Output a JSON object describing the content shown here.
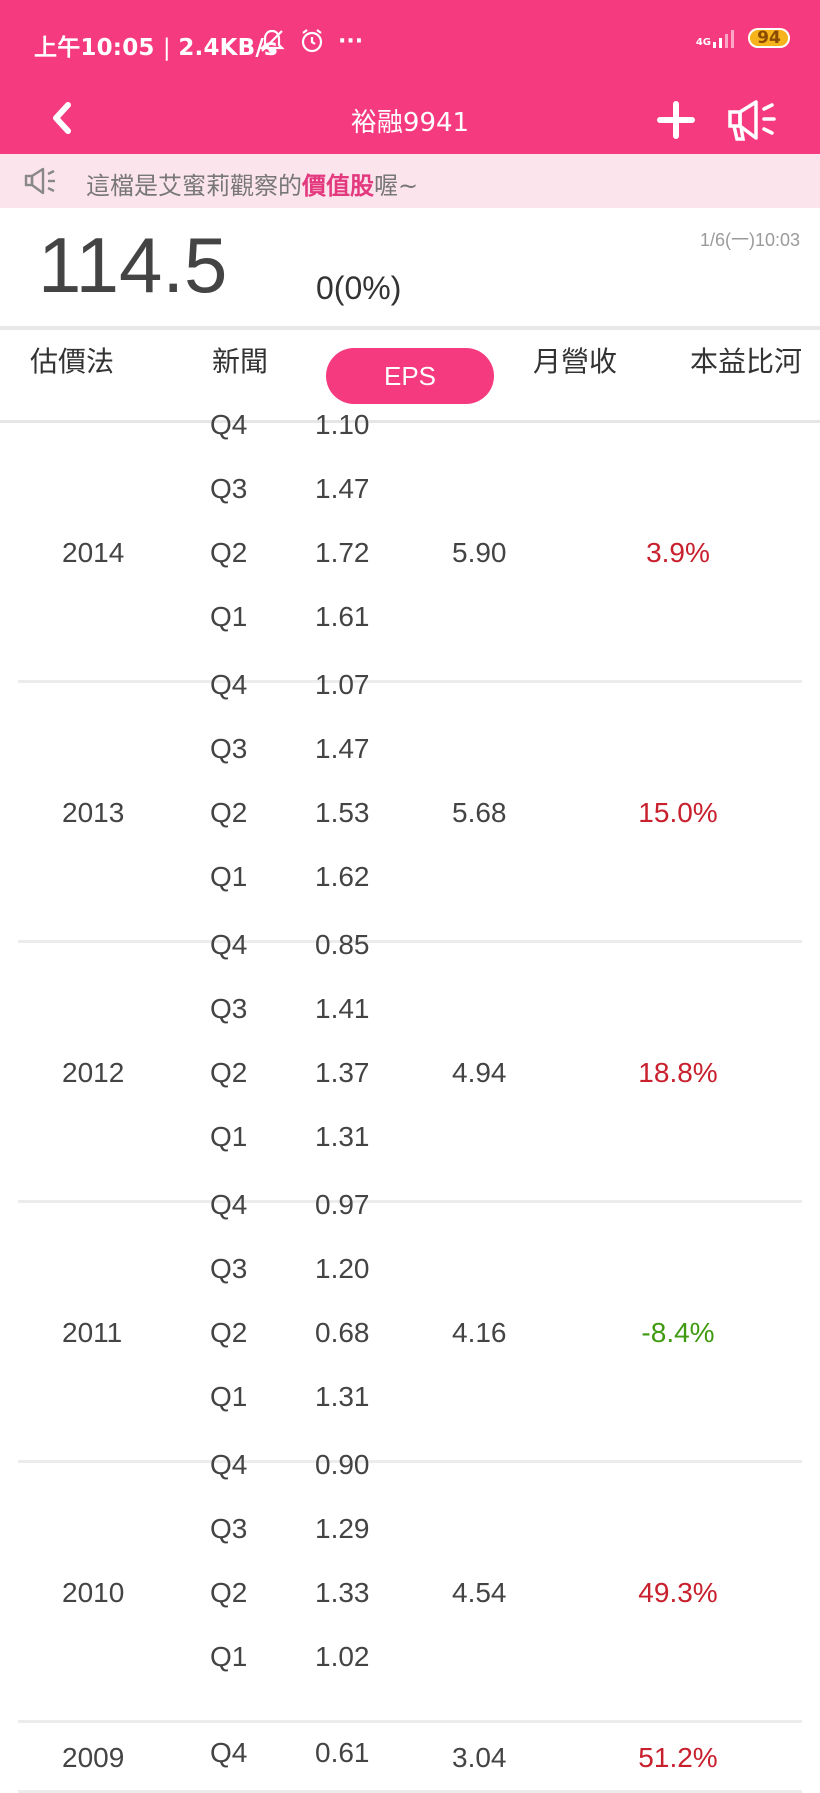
{
  "status_bar": {
    "time": "上午10:05",
    "network_speed": "2.4KB/s",
    "more": "···",
    "signal_label": "4G",
    "battery": "94"
  },
  "header": {
    "title": "裕融9941"
  },
  "notice": {
    "prefix": "這檔是艾蜜莉觀察的",
    "highlight": "價值股",
    "suffix": "喔~"
  },
  "quote": {
    "price": "114.5",
    "change": "0(0%)",
    "timestamp": "1/6(一)10:03"
  },
  "tabs": [
    {
      "label": "估價法",
      "active": false
    },
    {
      "label": "新聞",
      "active": false
    },
    {
      "label": "EPS",
      "active": true
    },
    {
      "label": "月營收",
      "active": false
    },
    {
      "label": "本益比河",
      "active": false
    }
  ],
  "eps_table": [
    {
      "year": "2014",
      "total": "5.90",
      "growth": "3.9%",
      "growth_direction": "up",
      "quarters": [
        {
          "q": "Q4",
          "eps": "1.10"
        },
        {
          "q": "Q3",
          "eps": "1.47"
        },
        {
          "q": "Q2",
          "eps": "1.72"
        },
        {
          "q": "Q1",
          "eps": "1.61"
        }
      ]
    },
    {
      "year": "2013",
      "total": "5.68",
      "growth": "15.0%",
      "growth_direction": "up",
      "quarters": [
        {
          "q": "Q4",
          "eps": "1.07"
        },
        {
          "q": "Q3",
          "eps": "1.47"
        },
        {
          "q": "Q2",
          "eps": "1.53"
        },
        {
          "q": "Q1",
          "eps": "1.62"
        }
      ]
    },
    {
      "year": "2012",
      "total": "4.94",
      "growth": "18.8%",
      "growth_direction": "up",
      "quarters": [
        {
          "q": "Q4",
          "eps": "0.85"
        },
        {
          "q": "Q3",
          "eps": "1.41"
        },
        {
          "q": "Q2",
          "eps": "1.37"
        },
        {
          "q": "Q1",
          "eps": "1.31"
        }
      ]
    },
    {
      "year": "2011",
      "total": "4.16",
      "growth": "-8.4%",
      "growth_direction": "down",
      "quarters": [
        {
          "q": "Q4",
          "eps": "0.97"
        },
        {
          "q": "Q3",
          "eps": "1.20"
        },
        {
          "q": "Q2",
          "eps": "0.68"
        },
        {
          "q": "Q1",
          "eps": "1.31"
        }
      ]
    },
    {
      "year": "2010",
      "total": "4.54",
      "growth": "49.3%",
      "growth_direction": "up",
      "quarters": [
        {
          "q": "Q4",
          "eps": "0.90"
        },
        {
          "q": "Q3",
          "eps": "1.29"
        },
        {
          "q": "Q2",
          "eps": "1.33"
        },
        {
          "q": "Q1",
          "eps": "1.02"
        }
      ]
    },
    {
      "year": "2009",
      "total": "3.04",
      "growth": "51.2%",
      "growth_direction": "up",
      "quarters": [
        {
          "q": "Q4",
          "eps": "0.61"
        }
      ]
    }
  ],
  "colors": {
    "brand": "#f53a7f",
    "notice_bg": "#fce4ec",
    "growth_up": "#c8202d",
    "growth_down": "#3f9a10"
  }
}
